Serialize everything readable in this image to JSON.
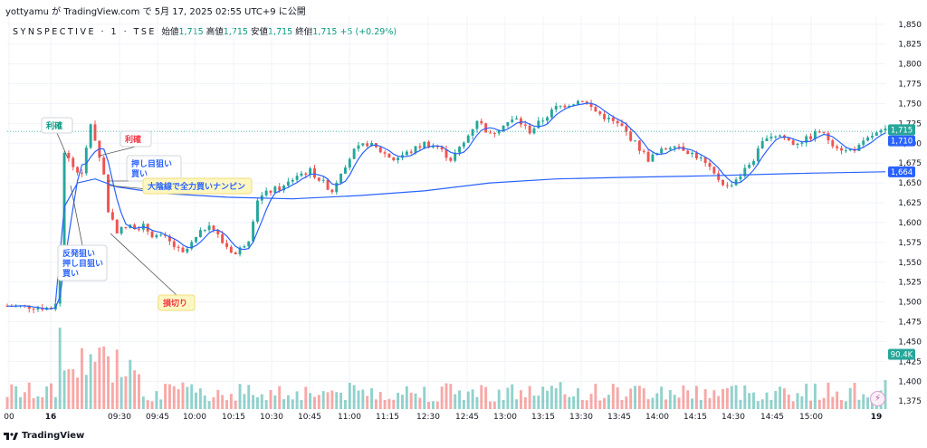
{
  "header": {
    "attribution": "yottyamu が TradingView.com で 5月 17, 2025 02:55 UTC+9 に公開",
    "symbol": "SYNSPECTIVE · 1 · TSE",
    "ohlc": [
      {
        "label": "始値",
        "value": "1,715"
      },
      {
        "label": "高値",
        "value": "1,715"
      },
      {
        "label": "安値",
        "value": "1,715"
      },
      {
        "label": "終値",
        "value": "1,715"
      }
    ],
    "change": "+5 (+0.29%)"
  },
  "footer": {
    "logo_text": "TradingView"
  },
  "colors": {
    "up": "#26a69a",
    "down": "#ef5350",
    "ma_short": "#2962ff",
    "ma_long": "#2962ff",
    "last_price_bg": "#26a69a",
    "ma_label_bg": "#2962ff",
    "grid": "#f0f3fa"
  },
  "chart_data": {
    "type": "candlestick",
    "grid": true,
    "y_axis": {
      "ylim": [
        1365,
        1860
      ],
      "ticks": [
        "1,850",
        "1,825",
        "1,800",
        "1,775",
        "1,750",
        "1,725",
        "1,700",
        "1,675",
        "1,650",
        "1,625",
        "1,600",
        "1,575",
        "1,550",
        "1,525",
        "1,500",
        "1,475",
        "1,450",
        "1,425",
        "1,400",
        "1,375"
      ]
    },
    "x_axis": {
      "tick_labels": [
        "00",
        "16",
        "09:30",
        "09:45",
        "10:00",
        "10:15",
        "10:30",
        "10:45",
        "11:00",
        "11:15",
        "12:30",
        "12:45",
        "13:00",
        "13:15",
        "13:30",
        "13:45",
        "14:00",
        "14:15",
        "14:30",
        "14:45",
        "15:00",
        "19"
      ]
    },
    "price_labels": {
      "last_price": "1,715",
      "ma_short": "1,710",
      "ma_long": "1,664",
      "volume": "90.4K"
    },
    "price_path": [
      {
        "x": 0,
        "y": 1495
      },
      {
        "x": 5,
        "y": 1494
      },
      {
        "x": 10,
        "y": 1492
      },
      {
        "x": 11,
        "y": 1500
      },
      {
        "x": 12,
        "y": 1560
      },
      {
        "x": 13,
        "y": 1690
      },
      {
        "x": 15,
        "y": 1670
      },
      {
        "x": 17,
        "y": 1660
      },
      {
        "x": 19,
        "y": 1725
      },
      {
        "x": 20,
        "y": 1705
      },
      {
        "x": 22,
        "y": 1660
      },
      {
        "x": 23,
        "y": 1615
      },
      {
        "x": 25,
        "y": 1590
      },
      {
        "x": 28,
        "y": 1595
      },
      {
        "x": 31,
        "y": 1595
      },
      {
        "x": 33,
        "y": 1585
      },
      {
        "x": 36,
        "y": 1580
      },
      {
        "x": 40,
        "y": 1560
      },
      {
        "x": 43,
        "y": 1580
      },
      {
        "x": 46,
        "y": 1600
      },
      {
        "x": 49,
        "y": 1575
      },
      {
        "x": 52,
        "y": 1560
      },
      {
        "x": 55,
        "y": 1580
      },
      {
        "x": 57,
        "y": 1630
      },
      {
        "x": 60,
        "y": 1640
      },
      {
        "x": 63,
        "y": 1645
      },
      {
        "x": 66,
        "y": 1660
      },
      {
        "x": 69,
        "y": 1665
      },
      {
        "x": 72,
        "y": 1650
      },
      {
        "x": 74,
        "y": 1640
      },
      {
        "x": 76,
        "y": 1665
      },
      {
        "x": 79,
        "y": 1690
      },
      {
        "x": 82,
        "y": 1700
      },
      {
        "x": 85,
        "y": 1690
      },
      {
        "x": 88,
        "y": 1680
      },
      {
        "x": 92,
        "y": 1690
      },
      {
        "x": 95,
        "y": 1700
      },
      {
        "x": 98,
        "y": 1695
      },
      {
        "x": 101,
        "y": 1680
      },
      {
        "x": 104,
        "y": 1700
      },
      {
        "x": 107,
        "y": 1730
      },
      {
        "x": 110,
        "y": 1710
      },
      {
        "x": 113,
        "y": 1725
      },
      {
        "x": 116,
        "y": 1730
      },
      {
        "x": 119,
        "y": 1715
      },
      {
        "x": 122,
        "y": 1730
      },
      {
        "x": 125,
        "y": 1745
      },
      {
        "x": 128,
        "y": 1750
      },
      {
        "x": 131,
        "y": 1755
      },
      {
        "x": 134,
        "y": 1740
      },
      {
        "x": 137,
        "y": 1730
      },
      {
        "x": 140,
        "y": 1720
      },
      {
        "x": 143,
        "y": 1700
      },
      {
        "x": 146,
        "y": 1680
      },
      {
        "x": 149,
        "y": 1690
      },
      {
        "x": 152,
        "y": 1700
      },
      {
        "x": 155,
        "y": 1690
      },
      {
        "x": 158,
        "y": 1680
      },
      {
        "x": 161,
        "y": 1660
      },
      {
        "x": 164,
        "y": 1645
      },
      {
        "x": 167,
        "y": 1660
      },
      {
        "x": 170,
        "y": 1680
      },
      {
        "x": 173,
        "y": 1710
      },
      {
        "x": 176,
        "y": 1710
      },
      {
        "x": 179,
        "y": 1700
      },
      {
        "x": 182,
        "y": 1705
      },
      {
        "x": 185,
        "y": 1715
      },
      {
        "x": 188,
        "y": 1700
      },
      {
        "x": 191,
        "y": 1690
      },
      {
        "x": 194,
        "y": 1695
      },
      {
        "x": 197,
        "y": 1710
      },
      {
        "x": 200,
        "y": 1715
      }
    ],
    "ma_long_path": [
      {
        "x": 11,
        "y": 1500
      },
      {
        "x": 13,
        "y": 1620
      },
      {
        "x": 16,
        "y": 1650
      },
      {
        "x": 20,
        "y": 1655
      },
      {
        "x": 25,
        "y": 1645
      },
      {
        "x": 35,
        "y": 1637
      },
      {
        "x": 50,
        "y": 1632
      },
      {
        "x": 65,
        "y": 1630
      },
      {
        "x": 80,
        "y": 1634
      },
      {
        "x": 95,
        "y": 1640
      },
      {
        "x": 110,
        "y": 1650
      },
      {
        "x": 125,
        "y": 1655
      },
      {
        "x": 140,
        "y": 1657
      },
      {
        "x": 160,
        "y": 1659
      },
      {
        "x": 180,
        "y": 1662
      },
      {
        "x": 200,
        "y": 1664
      }
    ],
    "annotations": [
      {
        "id": "a1",
        "text": [
          "利確"
        ],
        "style": "green"
      },
      {
        "id": "a2",
        "text": [
          "利確"
        ],
        "style": "red"
      },
      {
        "id": "a3",
        "text": [
          "押し目狙い",
          "買い"
        ],
        "style": "blue"
      },
      {
        "id": "a4",
        "text": [
          "大陰線で全力買いナンピン"
        ],
        "style": "yellow"
      },
      {
        "id": "a5",
        "text": [
          "反発狙い",
          "押し目狙い",
          "買い"
        ],
        "style": "blue"
      },
      {
        "id": "a6",
        "text": [
          "損切り"
        ],
        "style": "yellow-red"
      }
    ]
  }
}
